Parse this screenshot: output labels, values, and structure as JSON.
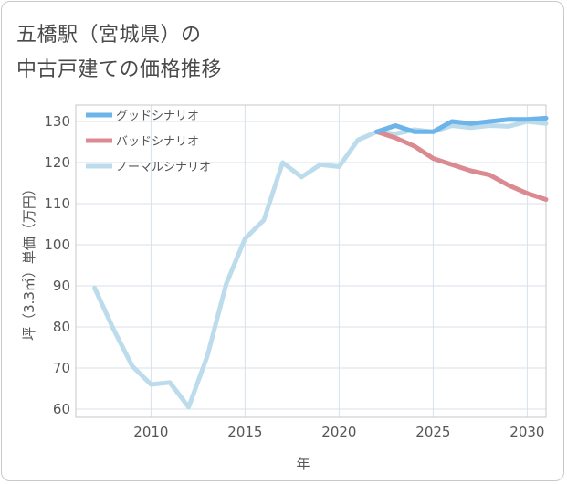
{
  "chart_data": {
    "type": "line",
    "title_lines": [
      "五橋駅（宮城県）の",
      "中古戸建ての価格推移"
    ],
    "xlabel": "年",
    "ylabel": "坪（3.3㎡）単価（万円）",
    "xlim": [
      2006,
      2031
    ],
    "ylim": [
      58,
      134
    ],
    "x_ticks": [
      2010,
      2015,
      2020,
      2025,
      2030
    ],
    "y_ticks": [
      60,
      70,
      80,
      90,
      100,
      110,
      120,
      130
    ],
    "grid": true,
    "legend_position": "top-left",
    "series": [
      {
        "name": "グッドシナリオ",
        "color": "#6cb4ea",
        "x": [
          2022,
          2023,
          2024,
          2025,
          2026,
          2027,
          2028,
          2029,
          2030,
          2031
        ],
        "values": [
          127.5,
          129.0,
          127.5,
          127.5,
          130.0,
          129.5,
          130.0,
          130.5,
          130.5,
          130.8
        ]
      },
      {
        "name": "バッドシナリオ",
        "color": "#dc8a92",
        "x": [
          2022,
          2023,
          2024,
          2025,
          2026,
          2027,
          2028,
          2029,
          2030,
          2031
        ],
        "values": [
          127.5,
          126.0,
          124.0,
          121.0,
          119.5,
          118.0,
          117.0,
          114.5,
          112.5,
          111.0
        ]
      },
      {
        "name": "ノーマルシナリオ",
        "color": "#bcdcec",
        "x": [
          2007,
          2008,
          2009,
          2010,
          2011,
          2012,
          2013,
          2014,
          2015,
          2016,
          2017,
          2018,
          2019,
          2020,
          2021,
          2022,
          2023,
          2024,
          2025,
          2026,
          2027,
          2028,
          2029,
          2030,
          2031
        ],
        "values": [
          89.5,
          79.5,
          70.5,
          66.0,
          66.5,
          60.5,
          73.0,
          90.5,
          101.5,
          106.0,
          120.0,
          116.5,
          119.5,
          119.0,
          125.5,
          127.5,
          127.0,
          128.0,
          127.5,
          129.0,
          128.5,
          129.0,
          128.8,
          130.0,
          129.5
        ]
      }
    ]
  }
}
